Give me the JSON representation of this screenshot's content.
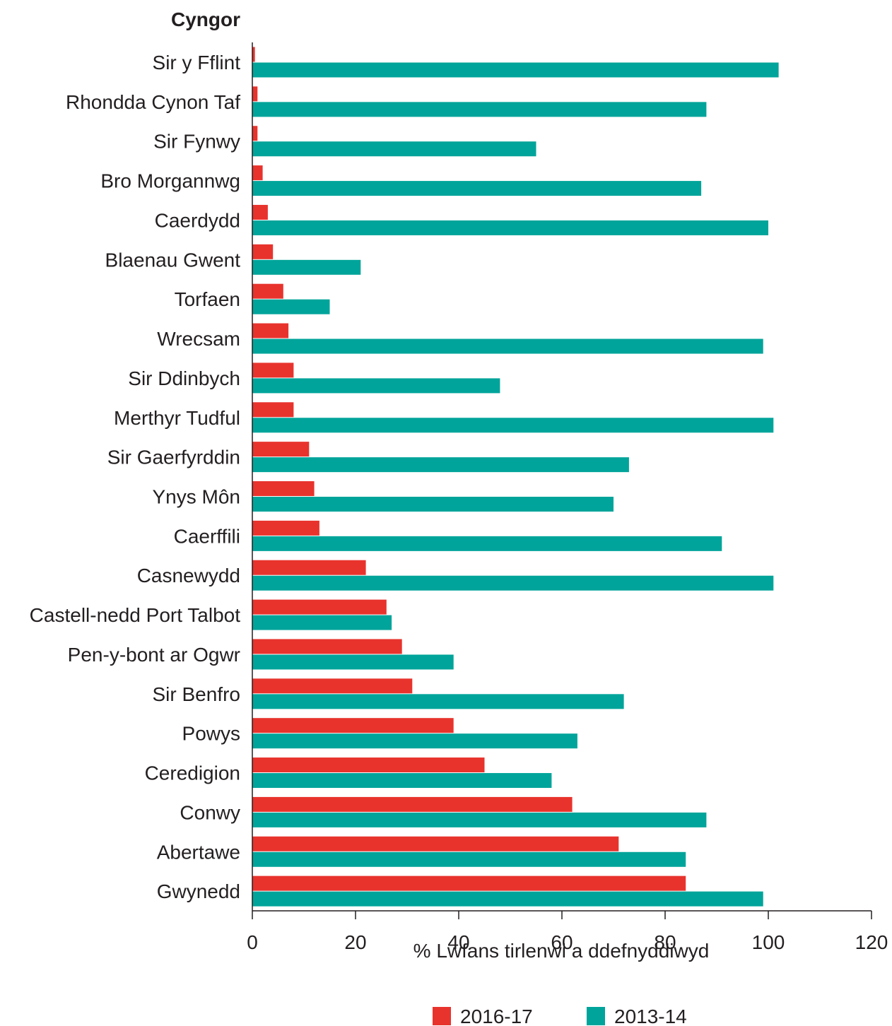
{
  "chart_data": {
    "type": "bar",
    "orientation": "horizontal",
    "ytitle": "Cyngor",
    "xlabel": "% Lwfans tirlenwi a ddefnyddiwyd",
    "xlim": [
      0,
      120
    ],
    "xticks": [
      0,
      20,
      40,
      60,
      80,
      100,
      120
    ],
    "grid": false,
    "legend_position": "bottom",
    "categories": [
      "Sir y Fflint",
      "Rhondda Cynon Taf",
      "Sir Fynwy",
      "Bro Morgannwg",
      "Caerdydd",
      "Blaenau Gwent",
      "Torfaen",
      "Wrecsam",
      "Sir Ddinbych",
      "Merthyr Tudful",
      "Sir Gaerfyrddin",
      "Ynys Môn",
      "Caerffili",
      "Casnewydd",
      "Castell-nedd Port Talbot",
      "Pen-y-bont ar Ogwr",
      "Sir Benfro",
      "Powys",
      "Ceredigion",
      "Conwy",
      "Abertawe",
      "Gwynedd"
    ],
    "series": [
      {
        "name": "2016-17",
        "color": "#e8332d",
        "values": [
          0.5,
          1,
          1,
          2,
          3,
          4,
          6,
          7,
          8,
          8,
          11,
          12,
          13,
          22,
          26,
          29,
          31,
          39,
          45,
          62,
          71,
          84
        ]
      },
      {
        "name": "2013-14",
        "color": "#00a49a",
        "values": [
          102,
          88,
          55,
          87,
          100,
          21,
          15,
          99,
          48,
          101,
          73,
          70,
          91,
          101,
          27,
          39,
          72,
          63,
          58,
          88,
          84,
          99
        ]
      }
    ]
  }
}
